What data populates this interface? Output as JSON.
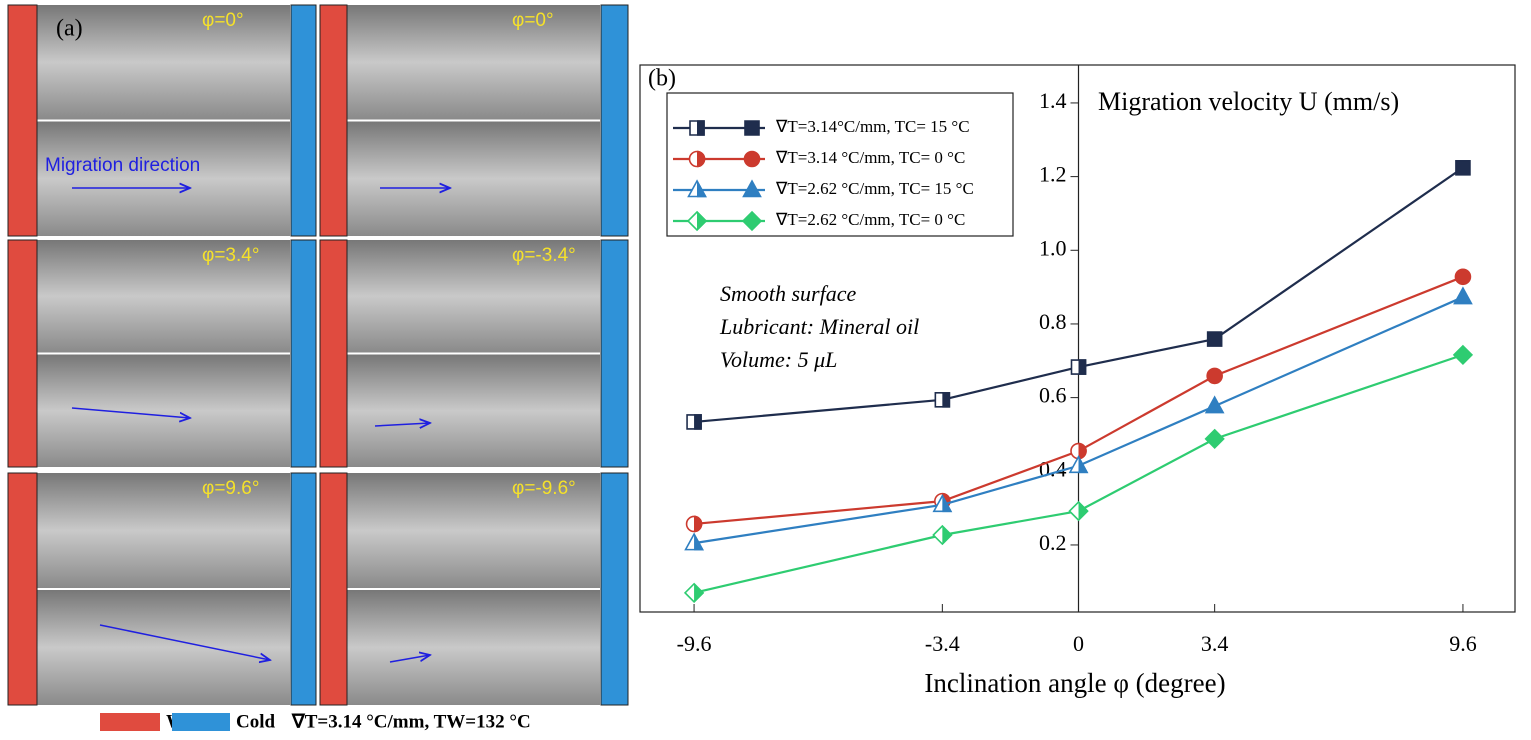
{
  "panel_a": {
    "label": "(a)",
    "angles": [
      "φ=0°",
      "φ=0°",
      "φ=3.4°",
      "φ=-3.4°",
      "φ=9.6°",
      "φ=-9.6°"
    ],
    "direction": "Migration direction",
    "legend": {
      "warm": "Warm",
      "cold": "Cold",
      "condition": "∇T=3.14 °C/mm, TW=132 °C"
    }
  },
  "chart_data": {
    "type": "line",
    "panel_label": "(b)",
    "y_label": "Migration velocity U (mm/s)",
    "x_label": "Inclination angle φ (degree)",
    "annotations": [
      "Smooth surface",
      "Lubricant: Mineral oil",
      "Volume: 5 μL"
    ],
    "x": [
      -9.6,
      -3.4,
      0,
      3.4,
      9.6
    ],
    "xlim": [
      -10.95,
      10.9
    ],
    "xticks": [
      -9.6,
      -3.4,
      0,
      3.4,
      9.6
    ],
    "ylim": [
      0.018,
      1.503
    ],
    "yticks": [
      0.2,
      0.4,
      0.6,
      0.8,
      {
        "value": 1,
        "label": "1.0"
      },
      1.2,
      1.4
    ],
    "series": [
      {
        "name": "∇T=3.14°C/mm, TC= 15 °C",
        "color": "#1f2d4d",
        "marker": "square",
        "values": [
          0.534,
          0.594,
          0.683,
          0.759,
          1.224
        ]
      },
      {
        "name": "∇T=3.14 °C/mm, TC= 0 °C",
        "color": "#cc3a2e",
        "marker": "circle",
        "values": [
          0.257,
          0.319,
          0.455,
          0.659,
          0.928
        ]
      },
      {
        "name": "∇T=2.62 °C/mm, TC= 15 °C",
        "color": "#2f7fc1",
        "marker": "triangle",
        "values": [
          0.205,
          0.309,
          0.415,
          0.577,
          0.873
        ]
      },
      {
        "name": "∇T=2.62 °C/mm, TC= 0 °C",
        "color": "#2ecc71",
        "marker": "diamond",
        "values": [
          0.07,
          0.227,
          0.292,
          0.488,
          0.716
        ]
      }
    ]
  }
}
